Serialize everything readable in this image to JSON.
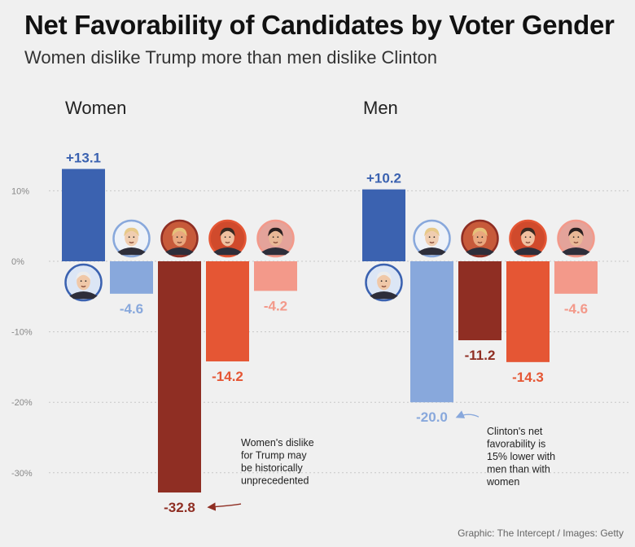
{
  "title": "Net Favorability of Candidates by Voter Gender",
  "subtitle": "Women dislike Trump more than men dislike Clinton",
  "credit": "Graphic: The Intercept / Images: Getty",
  "chart_data": [
    {
      "type": "bar",
      "title": "Women",
      "categories": [
        "Sanders",
        "Clinton",
        "Trump",
        "Cruz",
        "Rubio"
      ],
      "values": [
        13.1,
        -4.6,
        -32.8,
        -14.2,
        -4.2
      ],
      "value_labels": [
        "+13.1",
        "-4.6",
        "-32.8",
        "-14.2",
        "-4.2"
      ],
      "colors": [
        "#3b62b0",
        "#88a8dc",
        "#8f2e23",
        "#e55634",
        "#f3998a"
      ],
      "ylim": [
        -32.8,
        13.1
      ],
      "yticks": [
        10,
        0,
        -10,
        -20,
        -30
      ],
      "ytick_labels": [
        "10%",
        "0%",
        "-10%",
        "-20%",
        "-30%"
      ],
      "annotation": {
        "target": "Trump",
        "lines": [
          "Women's dislike",
          "for Trump may",
          "be historically",
          "unprecedented"
        ]
      }
    },
    {
      "type": "bar",
      "title": "Men",
      "categories": [
        "Sanders",
        "Clinton",
        "Trump",
        "Cruz",
        "Rubio"
      ],
      "values": [
        10.2,
        -20.0,
        -11.2,
        -14.3,
        -4.6
      ],
      "value_labels": [
        "+10.2",
        "-20.0",
        "-11.2",
        "-14.3",
        "-4.6"
      ],
      "colors": [
        "#3b62b0",
        "#88a8dc",
        "#8f2e23",
        "#e55634",
        "#f3998a"
      ],
      "annotation": {
        "target": "Clinton",
        "lines": [
          "Clinton's net",
          "favorability is",
          "15% lower with",
          "men than with",
          "women"
        ]
      }
    }
  ],
  "portraits": {
    "Sanders": {
      "icon": "sanders-portrait-icon",
      "ring": "#3b62b0",
      "bg": "#dce6f5",
      "skin": "#f0c8a8",
      "hair": "#ececec"
    },
    "Clinton": {
      "icon": "clinton-portrait-icon",
      "ring": "#88a8dc",
      "bg": "#eef2f8",
      "skin": "#f0cdb0",
      "hair": "#e7c98a"
    },
    "Trump": {
      "icon": "trump-portrait-icon",
      "ring": "#8f2e23",
      "bg": "#c75a3a",
      "skin": "#e9a77e",
      "hair": "#e6c27a"
    },
    "Cruz": {
      "icon": "cruz-portrait-icon",
      "ring": "#e55634",
      "bg": "#d04a2c",
      "skin": "#f0c0a0",
      "hair": "#3a2a22"
    },
    "Rubio": {
      "icon": "rubio-portrait-icon",
      "ring": "#f3998a",
      "bg": "#e4a39a",
      "skin": "#e8b896",
      "hair": "#2a2020"
    }
  }
}
